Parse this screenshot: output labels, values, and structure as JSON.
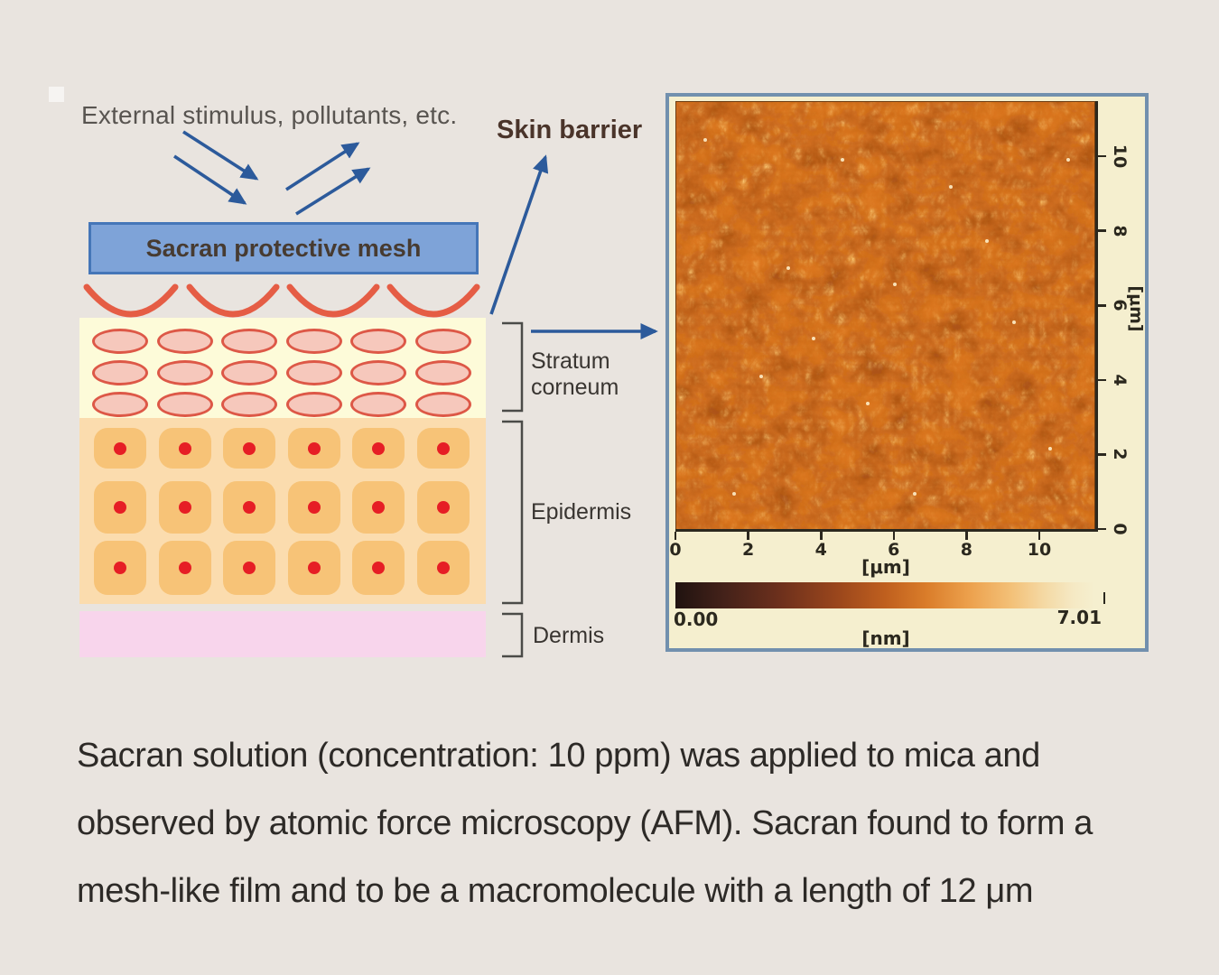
{
  "figure": {
    "stimulus_label": "External stimulus, pollutants, etc.",
    "mesh_box_label": "Sacran protective mesh",
    "skin_barrier_label": "Skin barrier",
    "layer_labels": {
      "stratum_corneum": "Stratum\ncorneum",
      "epidermis": "Epidermis",
      "dermis": "Dermis"
    },
    "skin_grid": {
      "rows": 3,
      "cols": 6
    }
  },
  "afm": {
    "x_axis": {
      "tick_labels": [
        "0",
        "2",
        "4",
        "6",
        "8",
        "10"
      ],
      "unit_label": "[μm]"
    },
    "y_axis": {
      "tick_labels": [
        "0",
        "2",
        "4",
        "6",
        "8",
        "10"
      ],
      "unit_label": "[μm]"
    },
    "height_scale": {
      "min_label": "0.00",
      "max_label": "7.01",
      "unit_label": "[nm]"
    }
  },
  "caption": {
    "line1": "Sacran solution (concentration: 10 ppm) was applied to mica and",
    "line2": "observed by atomic force microscopy (AFM). Sacran found to form a",
    "line3": "mesh-like film and to be a macromolecule with a length of 12 μm"
  },
  "colors": {
    "page-bg": "#e9e4df",
    "caption-text": "#2d2a27",
    "stim-text": "#585450",
    "barrier-text": "#4a342a",
    "label-text": "#393531",
    "arrow-blue": "#2c5a9b",
    "box-fill": "#7ea3d8",
    "box-border": "#4576b8",
    "box-text": "#473b31",
    "arc-red": "#e55d45",
    "sc-bg": "#fdfbd9",
    "ellipse-fill": "#f6c8bc",
    "ellipse-stroke": "#dd5847",
    "epi-bg": "#fbdcae",
    "cell-fill": "#f7c377",
    "dot-fill": "#e61e25",
    "dermis-bg": "#f8d5ec",
    "bracket-ink": "#4b4b48",
    "panel-bg": "#f5efcf",
    "panel-border": "#7290ae",
    "afm-base": "#de7820",
    "axis-ink": "#2b281e"
  }
}
